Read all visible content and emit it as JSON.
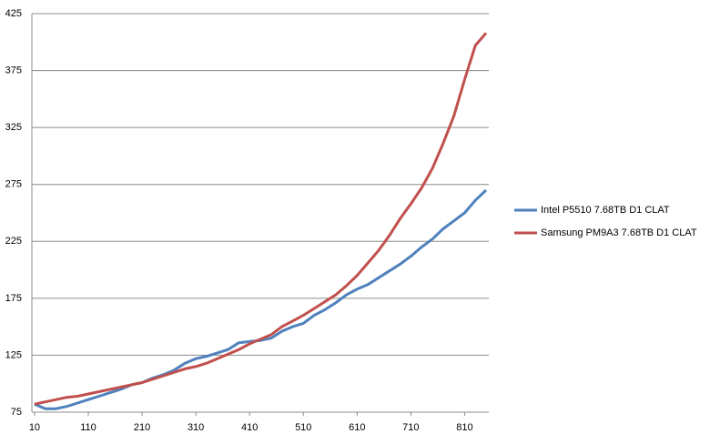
{
  "chart_data": {
    "type": "line",
    "x": [
      10,
      30,
      50,
      70,
      90,
      110,
      130,
      150,
      170,
      190,
      210,
      230,
      250,
      270,
      290,
      310,
      330,
      350,
      370,
      390,
      410,
      430,
      450,
      470,
      490,
      510,
      530,
      550,
      570,
      590,
      610,
      630,
      650,
      670,
      690,
      710,
      730,
      750,
      770,
      790,
      810,
      830,
      850
    ],
    "series": [
      {
        "name": "Intel P5510 7.68TB D1 CLAT",
        "color": "#4f81bd",
        "values": [
          82,
          78,
          78,
          80,
          83,
          86,
          89,
          92,
          95,
          99,
          101,
          105,
          108,
          112,
          118,
          122,
          124,
          127,
          130,
          136,
          137,
          138,
          140,
          146,
          150,
          153,
          160,
          165,
          171,
          178,
          183,
          187,
          193,
          199,
          205,
          212,
          220,
          227,
          236,
          243,
          250,
          261,
          270
        ]
      },
      {
        "name": "Samsung PM9A3 7.68TB D1 CLAT",
        "color": "#c0504d",
        "values": [
          82,
          84,
          86,
          88,
          89,
          91,
          93,
          95,
          97,
          99,
          101,
          104,
          107,
          110,
          113,
          115,
          118,
          122,
          126,
          130,
          135,
          139,
          143,
          150,
          155,
          160,
          166,
          172,
          178,
          186,
          195,
          206,
          217,
          230,
          245,
          258,
          272,
          289,
          311,
          335,
          367,
          397,
          408
        ]
      }
    ],
    "xlim": [
      5,
      855
    ],
    "xticks": [
      10,
      110,
      210,
      310,
      410,
      510,
      610,
      710,
      810
    ],
    "ylim": [
      75,
      425
    ],
    "yticks": [
      75,
      125,
      175,
      225,
      275,
      325,
      375,
      425
    ],
    "grid": true,
    "legend": "right"
  }
}
